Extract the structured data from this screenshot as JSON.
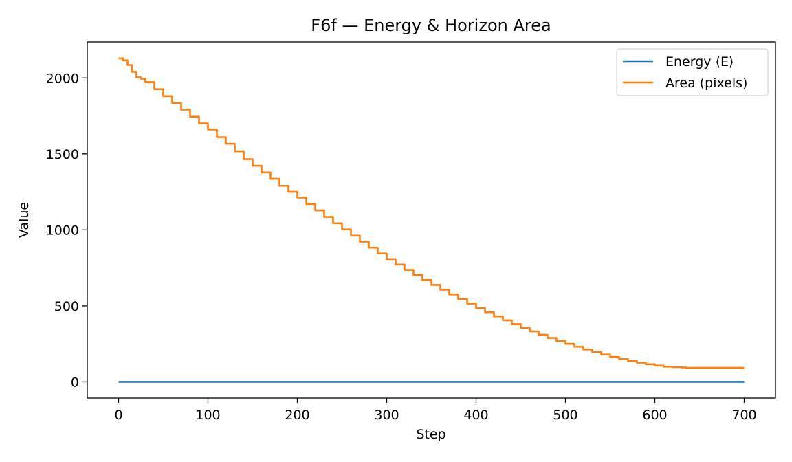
{
  "chart_data": {
    "type": "line",
    "title": "F6f — Energy & Horizon Area",
    "xlabel": "Step",
    "ylabel": "Value",
    "xlim": [
      -35,
      735
    ],
    "ylim": [
      -106.5,
      2236.5
    ],
    "xticks": [
      0,
      100,
      200,
      300,
      400,
      500,
      600,
      700
    ],
    "yticks": [
      0,
      500,
      1000,
      1500,
      2000
    ],
    "legend_position": "top-right",
    "grid": false,
    "series": [
      {
        "name": "Energy ⟨E⟩",
        "color": "#1f77b4",
        "x": [
          0,
          100,
          200,
          300,
          400,
          500,
          600,
          700
        ],
        "y": [
          0,
          0,
          0,
          0,
          0,
          0,
          0,
          0
        ]
      },
      {
        "name": "Area (pixels)",
        "color": "#ff7f0e",
        "step": true,
        "x": [
          0,
          5,
          10,
          15,
          20,
          25,
          30,
          40,
          50,
          60,
          70,
          80,
          90,
          100,
          110,
          120,
          130,
          140,
          150,
          160,
          170,
          180,
          190,
          200,
          210,
          220,
          230,
          240,
          250,
          260,
          270,
          280,
          290,
          300,
          310,
          320,
          330,
          340,
          350,
          360,
          370,
          380,
          390,
          400,
          410,
          420,
          430,
          440,
          450,
          460,
          470,
          480,
          490,
          500,
          510,
          520,
          530,
          540,
          550,
          560,
          570,
          580,
          590,
          600,
          610,
          620,
          630,
          635,
          650,
          700
        ],
        "y": [
          2129,
          2116,
          2085,
          2040,
          2004,
          1995,
          1972,
          1926,
          1880,
          1835,
          1791,
          1745,
          1700,
          1660,
          1610,
          1567,
          1517,
          1465,
          1422,
          1378,
          1336,
          1290,
          1250,
          1212,
          1170,
          1128,
          1085,
          1043,
          1003,
          962,
          922,
          883,
          845,
          808,
          772,
          737,
          703,
          670,
          638,
          606,
          575,
          545,
          515,
          486,
          458,
          431,
          405,
          380,
          356,
          332,
          310,
          289,
          269,
          250,
          231,
          213,
          196,
          180,
          164,
          150,
          137,
          126,
          116,
          107,
          100,
          97,
          95,
          92,
          92,
          92
        ]
      }
    ]
  }
}
